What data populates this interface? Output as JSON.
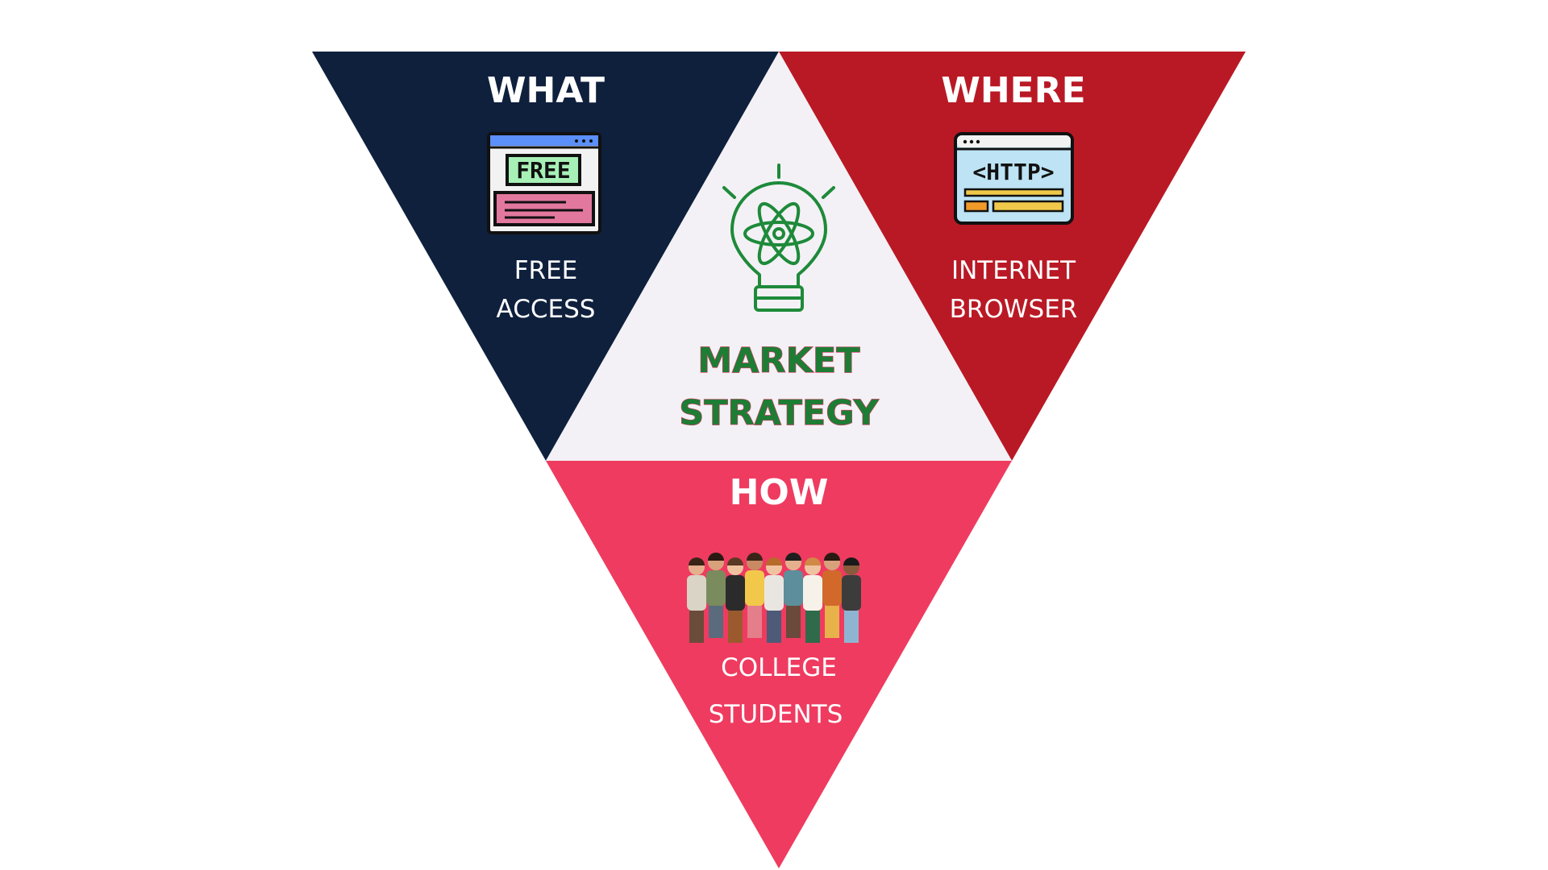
{
  "colors": {
    "what_panel": "#0f203d",
    "where_panel": "#b91925",
    "how_panel": "#ef3b60",
    "center_panel": "#f3f1f5",
    "center_text": "#1e7d34",
    "icon_green": "#1e8a3a"
  },
  "what": {
    "heading": "WHAT",
    "line1": "FREE",
    "line2": "ACCESS",
    "icon": "free-webpage-icon",
    "icon_text": "FREE"
  },
  "where": {
    "heading": "WHERE",
    "line1": "INTERNET",
    "line2": "BROWSER",
    "icon": "http-browser-icon",
    "icon_text": "<HTTP>"
  },
  "center": {
    "line1": "MARKET",
    "line2": "STRATEGY",
    "icon": "lightbulb-atom-icon"
  },
  "how": {
    "heading": "HOW",
    "line1": "COLLEGE",
    "line2": "STUDENTS",
    "icon": "student-group-illustration"
  }
}
